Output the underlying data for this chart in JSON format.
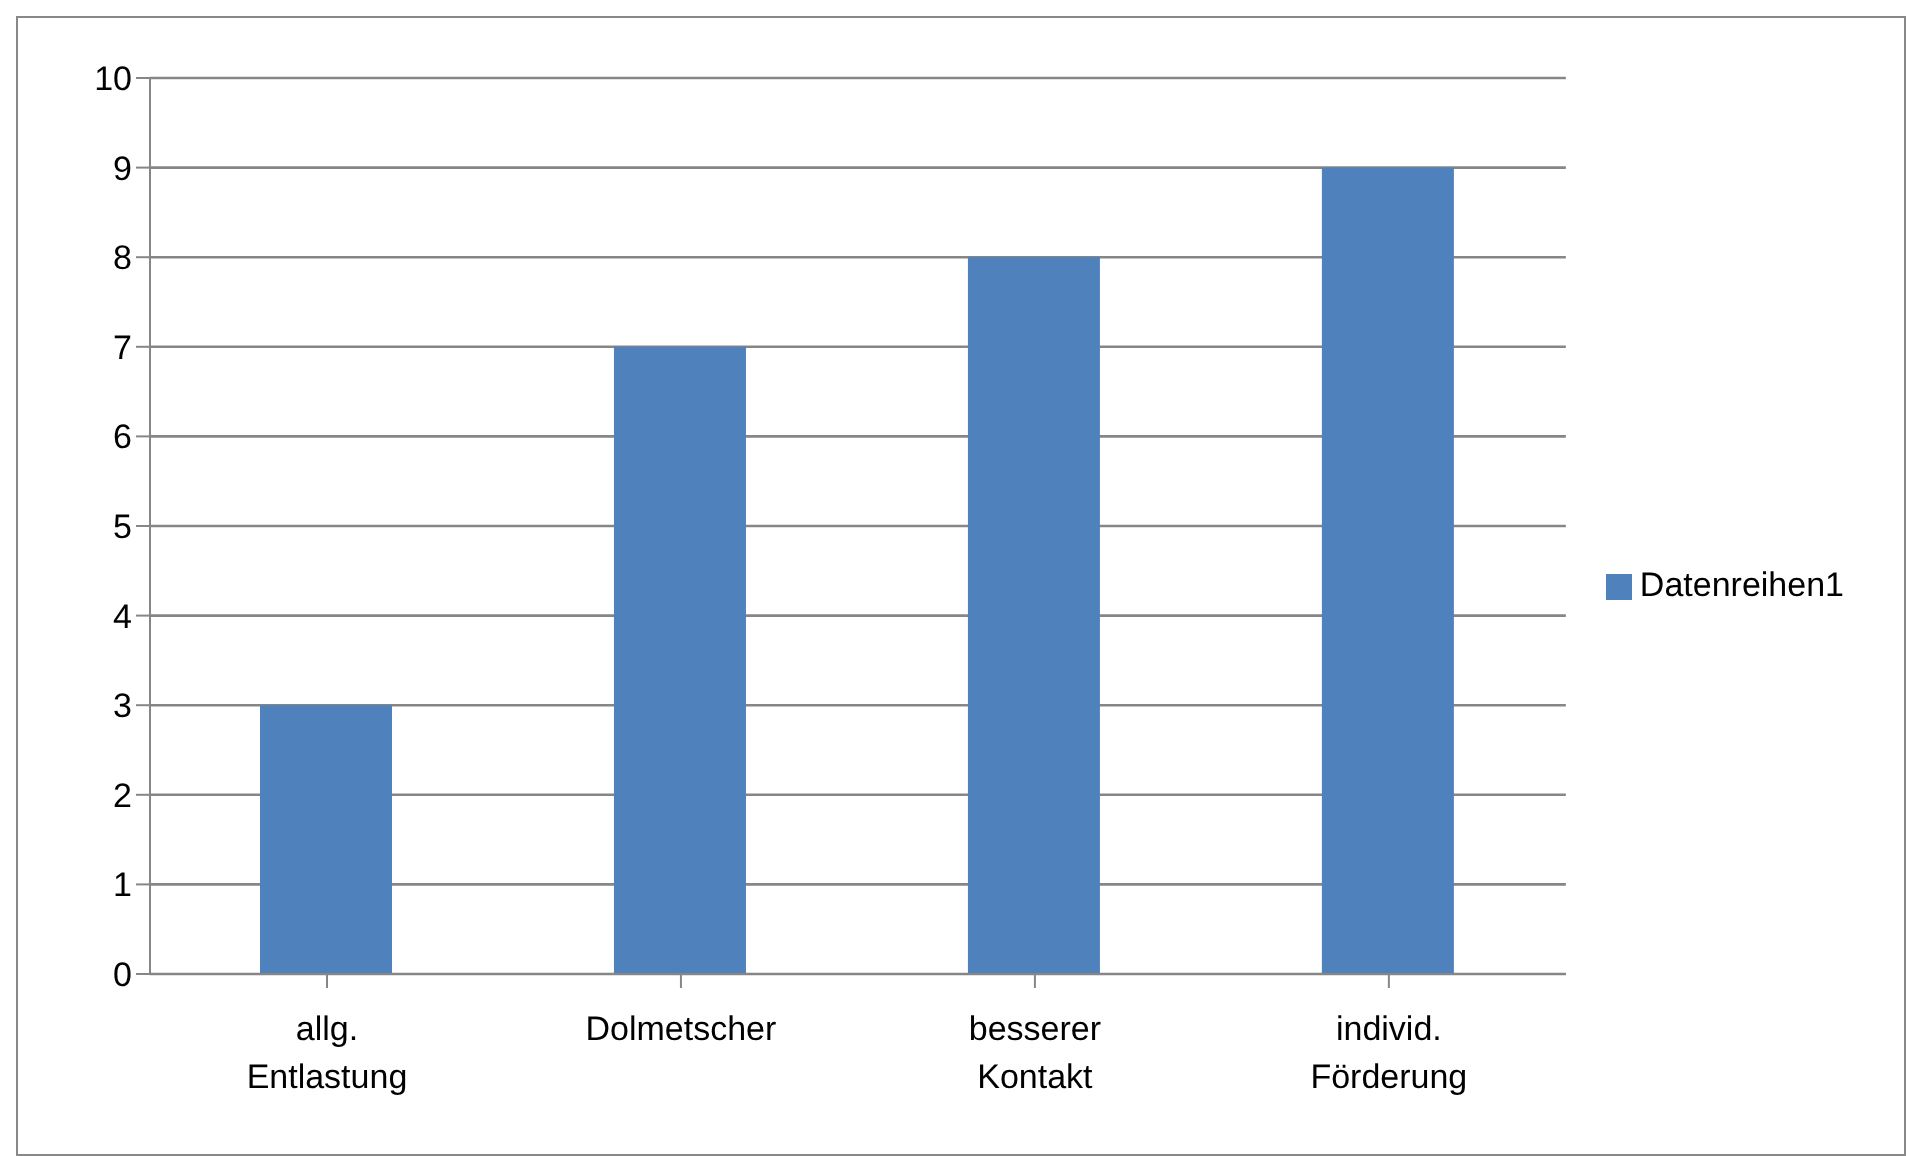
{
  "chart_data": {
    "type": "bar",
    "categories": [
      "allg. Entlastung",
      "Dolmetscher",
      "besserer Kontakt",
      "individ. Förderung"
    ],
    "series": [
      {
        "name": "Datenreihen1",
        "color": "#4f81bd",
        "values": [
          3,
          7,
          8,
          9
        ]
      }
    ],
    "ylim": [
      0,
      10
    ],
    "yticks": [
      0,
      1,
      2,
      3,
      4,
      5,
      6,
      7,
      8,
      9,
      10
    ],
    "grid": "y",
    "legend": "right"
  }
}
